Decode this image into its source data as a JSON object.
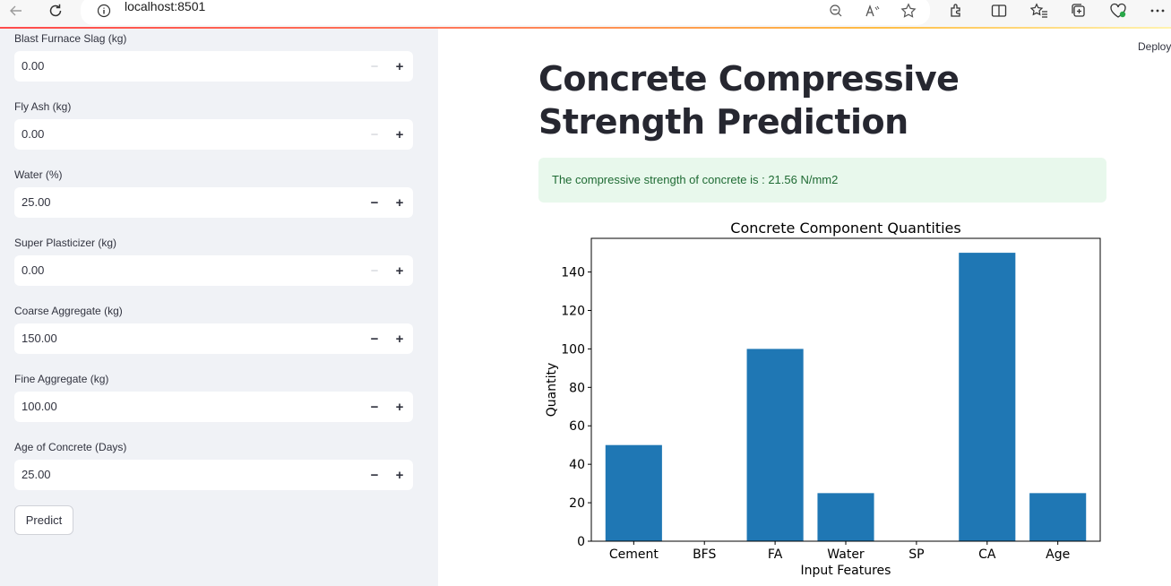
{
  "browser": {
    "url": "localhost:8501",
    "icons": [
      "back-arrow-icon",
      "reload-icon",
      "info-icon",
      "zoom-out-icon",
      "read-aloud-icon",
      "favorite-star-icon",
      "extensions-icon",
      "split-screen-icon",
      "favorites-icon",
      "collections-icon",
      "health-icon",
      "more-icon"
    ]
  },
  "sidebar": {
    "fields": [
      {
        "label": "Blast Furnace Slag (kg)",
        "value": "0.00",
        "minus_enabled": false
      },
      {
        "label": "Fly Ash (kg)",
        "value": "0.00",
        "minus_enabled": false
      },
      {
        "label": "Water (%)",
        "value": "25.00",
        "minus_enabled": true
      },
      {
        "label": "Super Plasticizer (kg)",
        "value": "0.00",
        "minus_enabled": false
      },
      {
        "label": "Coarse Aggregate (kg)",
        "value": "150.00",
        "minus_enabled": true
      },
      {
        "label": "Fine Aggregate (kg)",
        "value": "100.00",
        "minus_enabled": true
      },
      {
        "label": "Age of Concrete (Days)",
        "value": "25.00",
        "minus_enabled": true
      }
    ],
    "minus_symbol": "−",
    "plus_symbol": "+",
    "predict_label": "Predict"
  },
  "header": {
    "deploy_label": "Deploy"
  },
  "main": {
    "title": "Concrete Compressive Strength Prediction",
    "result_text": "The compressive strength of concrete is : 21.56 N/mm2",
    "colors": {
      "success_bg": "#e8f8ec",
      "success_text": "#1f6b34",
      "bar": "#1f77b4"
    }
  },
  "chart_data": {
    "type": "bar",
    "title": "Concrete Component Quantities",
    "xlabel": "Input Features",
    "ylabel": "Quantity",
    "categories": [
      "Cement",
      "BFS",
      "FA",
      "Water",
      "SP",
      "CA",
      "Age"
    ],
    "values": [
      50,
      0,
      100,
      25,
      0,
      150,
      25
    ],
    "ylim": [
      0,
      157.5
    ],
    "yticks": [
      0,
      20,
      40,
      60,
      80,
      100,
      120,
      140
    ],
    "grid": false,
    "legend": "none"
  }
}
